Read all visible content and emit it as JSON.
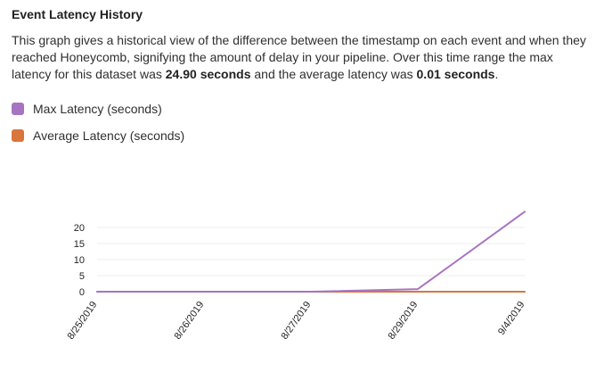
{
  "panel": {
    "title": "Event Latency History",
    "description": {
      "part1": "This graph gives a historical view of the difference between the timestamp on each event and when they reached Honeycomb, signifying the amount of delay in your pipeline. Over this time range the max latency for this dataset was ",
      "max_value": "24.90 seconds",
      "part2": " and the average latency was ",
      "avg_value": "0.01 seconds",
      "part3": "."
    }
  },
  "legend": [
    {
      "label": "Max Latency (seconds)",
      "color": "#a774c0"
    },
    {
      "label": "Average Latency (seconds)",
      "color": "#d9763c"
    }
  ],
  "chart_data": {
    "type": "line",
    "categories": [
      "8/25/2019",
      "8/26/2019",
      "8/27/2019",
      "8/29/2019",
      "9/4/2019"
    ],
    "yticks": [
      0,
      5,
      10,
      15,
      20
    ],
    "ylim": [
      0,
      25
    ],
    "grid": true,
    "series": [
      {
        "name": "Max Latency (seconds)",
        "color": "#a774c0",
        "points": [
          {
            "x": 0,
            "y": 0
          },
          {
            "x": 1,
            "y": 0
          },
          {
            "x": 2,
            "y": 0
          },
          {
            "x": 3,
            "y": 0.8
          },
          {
            "x": 4,
            "y": 24.9
          }
        ]
      },
      {
        "name": "Average Latency (seconds)",
        "color": "#d9763c",
        "points": [
          {
            "x": 0,
            "y": 0
          },
          {
            "x": 1,
            "y": 0
          },
          {
            "x": 2,
            "y": 0
          },
          {
            "x": 3,
            "y": 0
          },
          {
            "x": 4,
            "y": 0.01
          }
        ]
      }
    ]
  }
}
